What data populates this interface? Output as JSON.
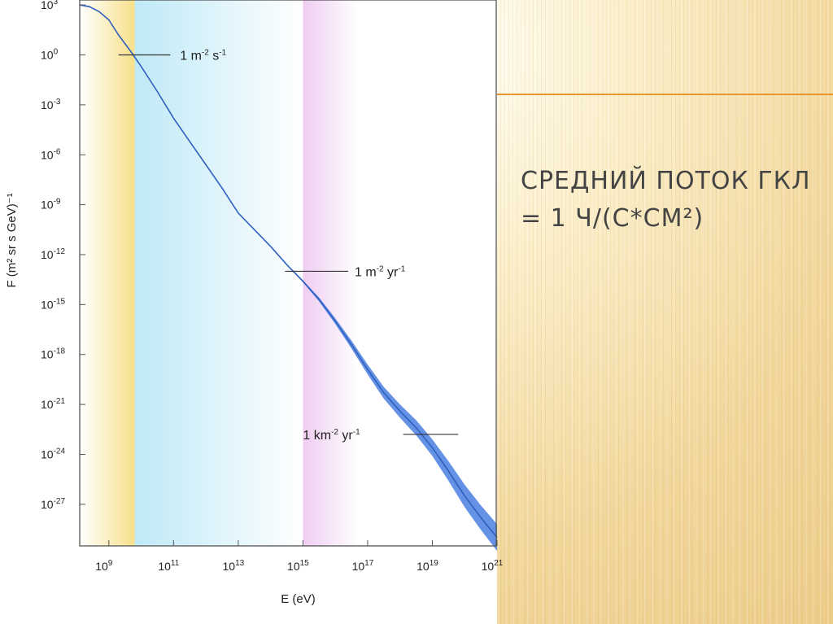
{
  "slide": {
    "title_line1": "СРЕДНИЙ ПОТОК ГКЛ",
    "title_line2": "= 1 Ч/(С*СМ²)",
    "accent_color": "#e8962e",
    "title_color": "#444444"
  },
  "chart_data": {
    "type": "line",
    "xlabel": "E (eV)",
    "ylabel": "F (m² sr s GeV)⁻¹",
    "x_scale": "log",
    "y_scale": "log",
    "xlim_exp": [
      8.1,
      21
    ],
    "ylim_exp": [
      -29.5,
      3.3
    ],
    "x_ticks": [
      {
        "exp": 9,
        "base": "10",
        "sup": "9"
      },
      {
        "exp": 11,
        "base": "10",
        "sup": "11"
      },
      {
        "exp": 13,
        "base": "10",
        "sup": "13"
      },
      {
        "exp": 15,
        "base": "10",
        "sup": "15"
      },
      {
        "exp": 17,
        "base": "10",
        "sup": "17"
      },
      {
        "exp": 19,
        "base": "10",
        "sup": "19"
      },
      {
        "exp": 21,
        "base": "10",
        "sup": "21"
      }
    ],
    "y_ticks": [
      {
        "exp": 3,
        "base": "10",
        "sup": "3"
      },
      {
        "exp": 0,
        "base": "10",
        "sup": "0"
      },
      {
        "exp": -3,
        "base": "10",
        "sup": "-3"
      },
      {
        "exp": -6,
        "base": "10",
        "sup": "-6"
      },
      {
        "exp": -9,
        "base": "10",
        "sup": "-9"
      },
      {
        "exp": -12,
        "base": "10",
        "sup": "-12"
      },
      {
        "exp": -15,
        "base": "10",
        "sup": "-15"
      },
      {
        "exp": -18,
        "base": "10",
        "sup": "-18"
      },
      {
        "exp": -21,
        "base": "10",
        "sup": "-21"
      },
      {
        "exp": -24,
        "base": "10",
        "sup": "-24"
      },
      {
        "exp": -27,
        "base": "10",
        "sup": "-27"
      }
    ],
    "bands": [
      {
        "name": "solar",
        "from_exp": 8.1,
        "to_exp": 9.8,
        "color": "#f7e08a"
      },
      {
        "name": "galactic",
        "from_exp": 9.8,
        "to_exp": 15.0,
        "color": "#bfe9f7"
      },
      {
        "name": "knee",
        "from_exp": 15.0,
        "to_exp": 16.7,
        "color": "#efcdf2"
      }
    ],
    "series": [
      {
        "points": [
          [
            8.1,
            3.0
          ],
          [
            8.4,
            2.9
          ],
          [
            8.7,
            2.6
          ],
          [
            9.0,
            2.1
          ],
          [
            9.3,
            1.2
          ],
          [
            9.7,
            0.15
          ],
          [
            10.0,
            -0.7
          ],
          [
            10.5,
            -2.2
          ],
          [
            11.0,
            -3.8
          ],
          [
            11.5,
            -5.2
          ],
          [
            12.0,
            -6.6
          ],
          [
            12.5,
            -8.0
          ],
          [
            13.0,
            -9.5
          ],
          [
            13.5,
            -10.5
          ],
          [
            14.0,
            -11.5
          ],
          [
            14.5,
            -12.6
          ],
          [
            15.0,
            -13.6
          ],
          [
            15.5,
            -14.7
          ],
          [
            16.0,
            -16.0
          ],
          [
            16.5,
            -17.4
          ],
          [
            17.0,
            -18.9
          ],
          [
            17.5,
            -20.3
          ],
          [
            18.0,
            -21.4
          ],
          [
            18.5,
            -22.4
          ],
          [
            19.0,
            -23.6
          ],
          [
            19.5,
            -25.0
          ],
          [
            20.0,
            -26.5
          ],
          [
            20.5,
            -27.8
          ],
          [
            21.0,
            -29.0
          ]
        ],
        "uncertainty_dex": [
          [
            14.0,
            0.0
          ],
          [
            15.0,
            0.12
          ],
          [
            16.0,
            0.35
          ],
          [
            17.0,
            0.6
          ],
          [
            18.0,
            0.8
          ],
          [
            19.0,
            1.0
          ],
          [
            20.0,
            1.35
          ],
          [
            21.0,
            1.6
          ]
        ],
        "color": "#2f5fbf",
        "band_color": "#4a7fe0"
      }
    ],
    "annotations": [
      {
        "text_base": "1 m",
        "sup1": "-2",
        "text_mid": " s",
        "sup2": "-1",
        "line_from_exp": 9.3,
        "line_to_exp": 10.9,
        "y_exp": 0.0,
        "text_at_exp": 11.2
      },
      {
        "text_base": "1 m",
        "sup1": "-2",
        "text_mid": " yr",
        "sup2": "-1",
        "line_from_exp": 14.45,
        "line_to_exp": 16.4,
        "y_exp": -13.0,
        "text_at_exp": 16.6
      },
      {
        "text_base": "1 km",
        "sup1": "-2",
        "text_mid": " yr",
        "sup2": "-1",
        "line_from_exp": 18.1,
        "line_to_exp": 19.8,
        "y_exp": -22.8,
        "text_at_exp": 15.0
      }
    ]
  }
}
